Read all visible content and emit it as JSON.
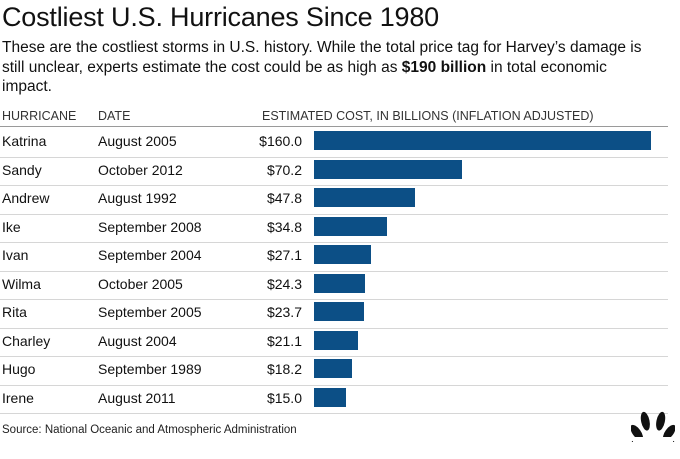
{
  "title": "Costliest U.S. Hurricanes Since 1980",
  "subtitle_before": "These are the costliest storms in U.S. history. While the total price tag for Harvey’s damage is still unclear, experts estimate the cost could be as high as ",
  "subtitle_bold": "$190 billion",
  "subtitle_after": " in total economic impact.",
  "source": "Source: National Oceanic and Atmospheric Administration",
  "logo": "peacock-logo-icon",
  "colors": {
    "bar": "#0c4f86",
    "text": "#111111",
    "rule": "#d6d6d6"
  },
  "chart_data": {
    "type": "bar",
    "orientation": "horizontal",
    "title": "Costliest U.S. Hurricanes Since 1980",
    "columns": [
      "HURRICANE",
      "DATE",
      "ESTIMATED COST, IN BILLIONS (INFLATION ADJUSTED)"
    ],
    "categories": [
      "Katrina",
      "Sandy",
      "Andrew",
      "Ike",
      "Ivan",
      "Wilma",
      "Rita",
      "Charley",
      "Hugo",
      "Irene"
    ],
    "dates": [
      "August 2005",
      "October 2012",
      "August 1992",
      "September 2008",
      "September 2004",
      "October 2005",
      "September 2005",
      "August 2004",
      "September 1989",
      "August 2011"
    ],
    "values": [
      160.0,
      70.2,
      47.8,
      34.8,
      27.1,
      24.3,
      23.7,
      21.1,
      18.2,
      15.0
    ],
    "labels": [
      "$160.0",
      "$70.2",
      "$47.8",
      "$34.8",
      "$27.1",
      "$24.3",
      "$23.7",
      "$21.1",
      "$18.2",
      "$15.0"
    ],
    "xlim": [
      0,
      160
    ],
    "grid": false,
    "legend": "none"
  }
}
